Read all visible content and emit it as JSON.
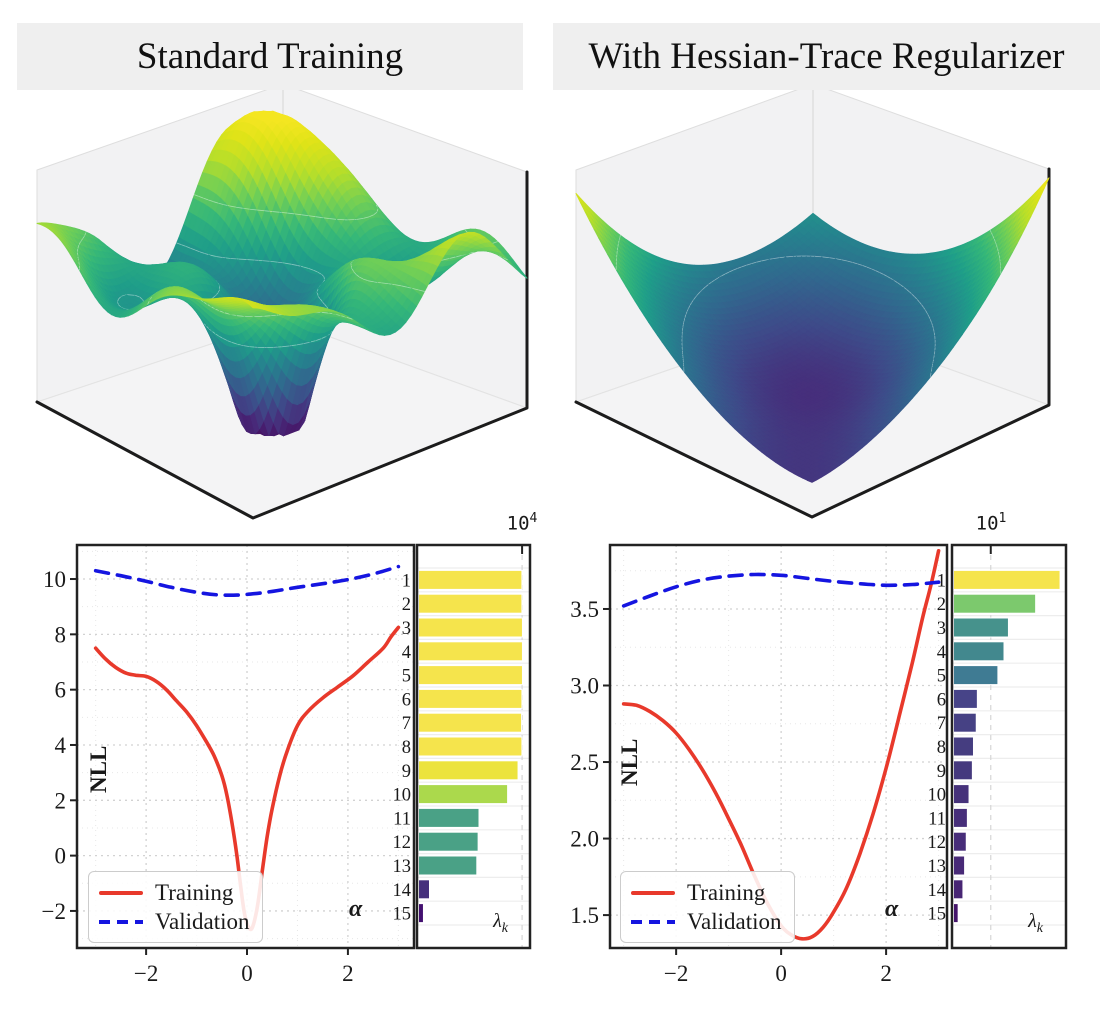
{
  "titles": {
    "left": "Standard Training",
    "right": "With Hessian-Trace Regularizer"
  },
  "accent_colors": {
    "training": "#e8392b",
    "validation": "#1515e0",
    "title_bg": "#efefef",
    "spine": "#222222"
  },
  "chart_data": [
    {
      "id": "left_surface",
      "type": "surface_3d",
      "panel": "left",
      "colormap": "viridis",
      "description": "Rugged noisy loss landscape: green mid-level terrain with yellow peaks toward the back and one deep narrow funnel-shaped minimum (dark purple) near the center. No axis tick labels shown.",
      "generator": {
        "kind": "rugged",
        "base": 0.56,
        "harmonics": [
          [
            0.12,
            3.1,
            2.3,
            0.7
          ],
          [
            0.1,
            7.3,
            0,
            1.4
          ],
          [
            0.09,
            0,
            6.1,
            0.97
          ],
          [
            0.07,
            9.7,
            5.3,
            0.8
          ],
          [
            0.06,
            11.3,
            -7.9,
            3.57
          ],
          [
            0.05,
            15.1,
            6.7,
            3.0
          ],
          [
            0.04,
            -9.1,
            13.7,
            1.97
          ]
        ],
        "gaussians": [
          {
            "a": 0.78,
            "b": 0.82,
            "h": 0.4,
            "r2": 0.06
          },
          {
            "a": 0.95,
            "b": 0.4,
            "h": 0.1,
            "r2": 0.05
          },
          {
            "a": 0.12,
            "b": 0.3,
            "h": -0.1,
            "r2": 0.06
          },
          {
            "a": 0.42,
            "b": 0.38,
            "h": -0.62,
            "r2": 0.02
          }
        ],
        "clamp": [
          0.04,
          0.97
        ],
        "contour_levels": [
          0.48,
          0.66
        ]
      }
    },
    {
      "id": "right_surface",
      "type": "surface_3d",
      "panel": "right",
      "colormap": "viridis",
      "description": "Smooth convex valley: high yellow walls at the far left and right corners, wide dark-purple valley floor sweeping through the center, teal back wall. No axis tick labels shown.",
      "generator": {
        "kind": "valley",
        "base": 0.12,
        "d_coef": 0.8,
        "d_lin": 0.04,
        "s_center": 0.35,
        "s_up": 0.75,
        "s_down": 0.18,
        "wave": [
          0.015,
          5,
          3,
          0
        ],
        "clamp": [
          0.04,
          0.98
        ],
        "contour_levels": [
          0.35,
          0.65
        ]
      }
    },
    {
      "id": "left_nll",
      "type": "line",
      "panel": "left",
      "xlabel": "α",
      "ylabel": "NLL",
      "xlim": [
        -3.37,
        3.31
      ],
      "ylim": [
        -3.34,
        11.23
      ],
      "xticks": [
        -2,
        0,
        2
      ],
      "xtick_labels": [
        "−2",
        "0",
        "2"
      ],
      "yticks": [
        -2,
        0,
        2,
        4,
        6,
        8,
        10
      ],
      "ytick_labels": [
        "−2",
        "0",
        "2",
        "4",
        "6",
        "8",
        "10"
      ],
      "xticks_minor": [
        -3,
        -1,
        1,
        3
      ],
      "yticks_minor": [
        -3,
        -1,
        1,
        3,
        5,
        7,
        9,
        11
      ],
      "grid": true,
      "legend_position": "lower left",
      "series": [
        {
          "name": "Training",
          "color": "#e8392b",
          "dash": "solid",
          "points": [
            [
              -3.0,
              7.5
            ],
            [
              -2.8,
              7.1
            ],
            [
              -2.6,
              6.8
            ],
            [
              -2.4,
              6.6
            ],
            [
              -2.2,
              6.52
            ],
            [
              -2.0,
              6.48
            ],
            [
              -1.8,
              6.3
            ],
            [
              -1.6,
              6.0
            ],
            [
              -1.4,
              5.6
            ],
            [
              -1.2,
              5.2
            ],
            [
              -1.0,
              4.7
            ],
            [
              -0.8,
              4.1
            ],
            [
              -0.65,
              3.6
            ],
            [
              -0.5,
              2.9
            ],
            [
              -0.4,
              2.2
            ],
            [
              -0.3,
              1.2
            ],
            [
              -0.2,
              0.0
            ],
            [
              -0.12,
              -1.2
            ],
            [
              -0.05,
              -2.1
            ],
            [
              0.02,
              -2.55
            ],
            [
              0.1,
              -2.62
            ],
            [
              0.2,
              -1.9
            ],
            [
              0.3,
              -0.6
            ],
            [
              0.4,
              0.7
            ],
            [
              0.5,
              1.7
            ],
            [
              0.65,
              2.9
            ],
            [
              0.8,
              3.8
            ],
            [
              1.0,
              4.7
            ],
            [
              1.2,
              5.2
            ],
            [
              1.5,
              5.7
            ],
            [
              1.8,
              6.1
            ],
            [
              2.1,
              6.5
            ],
            [
              2.4,
              7.0
            ],
            [
              2.7,
              7.5
            ],
            [
              2.85,
              7.9
            ],
            [
              3.0,
              8.25
            ]
          ]
        },
        {
          "name": "Validation",
          "color": "#1515e0",
          "dash": "dashed",
          "points": [
            [
              -3.0,
              10.3
            ],
            [
              -2.5,
              10.12
            ],
            [
              -2.0,
              9.92
            ],
            [
              -1.5,
              9.7
            ],
            [
              -1.0,
              9.52
            ],
            [
              -0.6,
              9.43
            ],
            [
              -0.2,
              9.42
            ],
            [
              0.2,
              9.48
            ],
            [
              0.6,
              9.58
            ],
            [
              1.0,
              9.7
            ],
            [
              1.5,
              9.83
            ],
            [
              2.0,
              9.98
            ],
            [
              2.5,
              10.18
            ],
            [
              3.0,
              10.45
            ]
          ]
        }
      ]
    },
    {
      "id": "left_eigen",
      "type": "bar",
      "panel": "left",
      "orientation": "horizontal",
      "xscale": "log",
      "xlabel": "λ",
      "xlabel_sub": "k",
      "scale_tick": {
        "base": "10",
        "exp": "4",
        "fraction": 0.93
      },
      "categories": [
        1,
        2,
        3,
        4,
        5,
        6,
        7,
        8,
        9,
        10,
        11,
        12,
        13,
        14,
        15
      ],
      "bar_fractions": [
        0.94,
        0.94,
        0.945,
        0.945,
        0.945,
        0.94,
        0.937,
        0.94,
        0.905,
        0.81,
        0.55,
        0.542,
        0.53,
        0.1,
        0.045
      ],
      "approx_values": [
        11000,
        11000,
        11200,
        11200,
        11200,
        11000,
        10800,
        11000,
        7800,
        3050,
        230,
        215,
        190,
        2.7,
        1.6
      ],
      "bar_colors": [
        "#f5e44c",
        "#f5e44c",
        "#f5e44c",
        "#f5e44c",
        "#f5e44c",
        "#f5e44c",
        "#f5e44c",
        "#f5e44c",
        "#ece33d",
        "#abd94c",
        "#4aa186",
        "#4aa186",
        "#4aa186",
        "#45307c",
        "#431070"
      ]
    },
    {
      "id": "right_nll",
      "type": "line",
      "panel": "right",
      "xlabel": "α",
      "ylabel": "NLL",
      "xlim": [
        -3.26,
        3.16
      ],
      "ylim": [
        1.285,
        3.918
      ],
      "xticks": [
        -2,
        0,
        2
      ],
      "xtick_labels": [
        "−2",
        "0",
        "2"
      ],
      "yticks": [
        1.5,
        2.0,
        2.5,
        3.0,
        3.5
      ],
      "ytick_labels": [
        "1.5",
        "2.0",
        "2.5",
        "3.0",
        "3.5"
      ],
      "xticks_minor": [
        -3,
        -1,
        1,
        3
      ],
      "yticks_minor": [
        1.25,
        1.75,
        2.25,
        2.75,
        3.25,
        3.75
      ],
      "grid": true,
      "legend_position": "lower left",
      "series": [
        {
          "name": "Training",
          "color": "#e8392b",
          "dash": "solid",
          "points": [
            [
              -3.0,
              2.88
            ],
            [
              -2.75,
              2.87
            ],
            [
              -2.5,
              2.83
            ],
            [
              -2.25,
              2.77
            ],
            [
              -2.0,
              2.69
            ],
            [
              -1.75,
              2.58
            ],
            [
              -1.5,
              2.45
            ],
            [
              -1.25,
              2.3
            ],
            [
              -1.0,
              2.13
            ],
            [
              -0.75,
              1.95
            ],
            [
              -0.5,
              1.75
            ],
            [
              -0.25,
              1.57
            ],
            [
              0.0,
              1.43
            ],
            [
              0.2,
              1.37
            ],
            [
              0.4,
              1.345
            ],
            [
              0.6,
              1.36
            ],
            [
              0.8,
              1.42
            ],
            [
              1.0,
              1.52
            ],
            [
              1.25,
              1.68
            ],
            [
              1.5,
              1.9
            ],
            [
              1.75,
              2.16
            ],
            [
              2.0,
              2.46
            ],
            [
              2.25,
              2.8
            ],
            [
              2.5,
              3.15
            ],
            [
              2.7,
              3.45
            ],
            [
              2.85,
              3.65
            ],
            [
              3.0,
              3.88
            ]
          ]
        },
        {
          "name": "Validation",
          "color": "#1515e0",
          "dash": "dashed",
          "points": [
            [
              -3.0,
              3.52
            ],
            [
              -2.5,
              3.585
            ],
            [
              -2.0,
              3.645
            ],
            [
              -1.5,
              3.69
            ],
            [
              -1.0,
              3.715
            ],
            [
              -0.5,
              3.725
            ],
            [
              0.0,
              3.72
            ],
            [
              0.5,
              3.7
            ],
            [
              1.0,
              3.68
            ],
            [
              1.5,
              3.665
            ],
            [
              2.0,
              3.655
            ],
            [
              2.5,
              3.66
            ],
            [
              3.0,
              3.675
            ]
          ]
        }
      ]
    },
    {
      "id": "right_eigen",
      "type": "bar",
      "panel": "right",
      "orientation": "horizontal",
      "xscale": "log",
      "xlabel": "λ",
      "xlabel_sub": "k",
      "scale_tick": {
        "base": "10",
        "exp": "1",
        "fraction": 0.34
      },
      "categories": [
        1,
        2,
        3,
        4,
        5,
        6,
        7,
        8,
        9,
        10,
        11,
        12,
        13,
        14,
        15
      ],
      "bar_fractions": [
        0.96,
        0.74,
        0.495,
        0.455,
        0.4,
        0.215,
        0.205,
        0.18,
        0.17,
        0.14,
        0.125,
        0.115,
        0.1,
        0.085,
        0.042
      ],
      "approx_values": [
        660,
        150,
        29,
        22,
        15,
        4.3,
        4.0,
        3.4,
        3.2,
        2.6,
        2.3,
        2.2,
        2.0,
        1.8,
        1.3
      ],
      "bar_colors": [
        "#f5e44c",
        "#7cc96d",
        "#46928c",
        "#42888e",
        "#3f7b93",
        "#474488",
        "#464184",
        "#453d80",
        "#45397e",
        "#46327b",
        "#472f7a",
        "#472d79",
        "#482a77",
        "#482674",
        "#45156b"
      ]
    }
  ]
}
